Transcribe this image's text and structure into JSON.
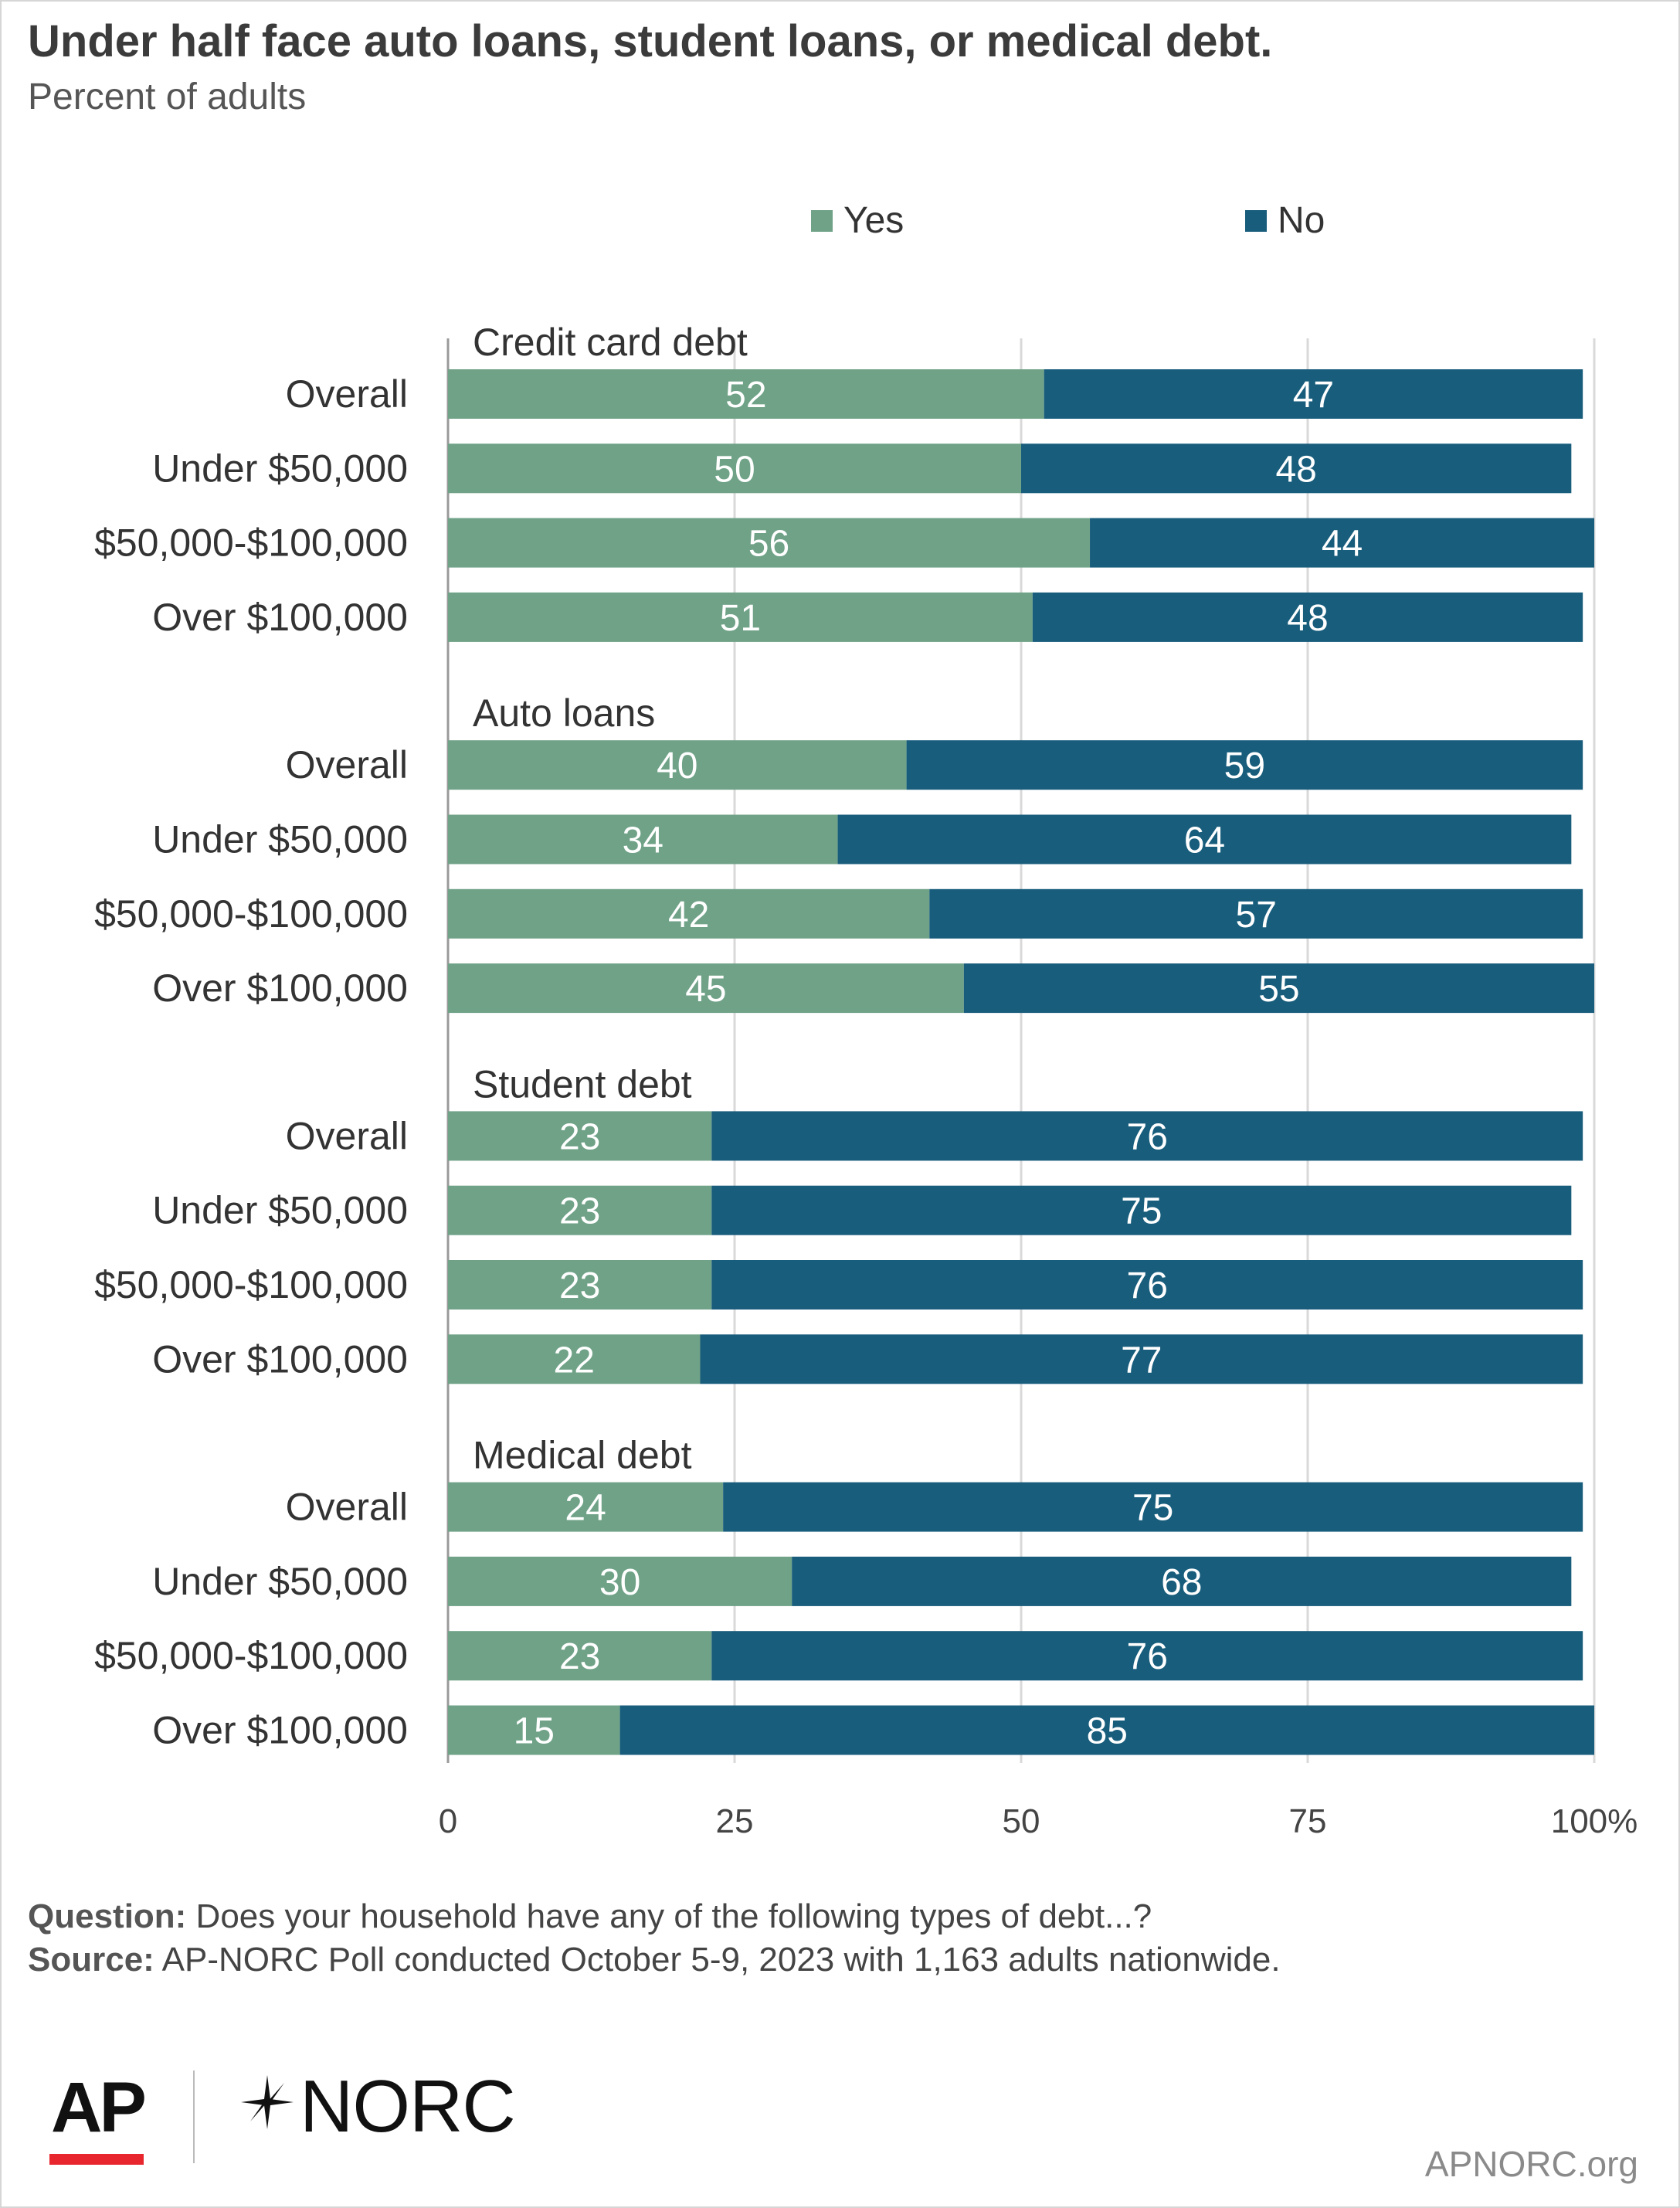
{
  "header": {
    "title": "Under half face auto loans, student loans, or medical debt.",
    "subtitle": "Percent of adults"
  },
  "colors": {
    "yes": "#6fa287",
    "no": "#185d7c",
    "grid": "#d9d9d9",
    "ap_red": "#e8262d"
  },
  "chart_data": {
    "type": "bar",
    "orientation": "horizontal",
    "stacked": true,
    "xlim": [
      0,
      100
    ],
    "x_ticks": [
      "0",
      "25",
      "50",
      "75",
      "100%"
    ],
    "grid": true,
    "legend_position": "top",
    "series": [
      {
        "name": "Yes"
      },
      {
        "name": "No"
      }
    ],
    "groups": [
      {
        "title": "Credit card debt",
        "rows": [
          {
            "label": "Overall",
            "yes": 52,
            "no": 47
          },
          {
            "label": "Under $50,000",
            "yes": 50,
            "no": 48
          },
          {
            "label": "$50,000-$100,000",
            "yes": 56,
            "no": 44
          },
          {
            "label": "Over $100,000",
            "yes": 51,
            "no": 48
          }
        ]
      },
      {
        "title": "Auto loans",
        "rows": [
          {
            "label": "Overall",
            "yes": 40,
            "no": 59
          },
          {
            "label": "Under $50,000",
            "yes": 34,
            "no": 64
          },
          {
            "label": "$50,000-$100,000",
            "yes": 42,
            "no": 57
          },
          {
            "label": "Over $100,000",
            "yes": 45,
            "no": 55
          }
        ]
      },
      {
        "title": "Student debt",
        "rows": [
          {
            "label": "Overall",
            "yes": 23,
            "no": 76
          },
          {
            "label": "Under $50,000",
            "yes": 23,
            "no": 75
          },
          {
            "label": "$50,000-$100,000",
            "yes": 23,
            "no": 76
          },
          {
            "label": "Over $100,000",
            "yes": 22,
            "no": 77
          }
        ]
      },
      {
        "title": "Medical debt",
        "rows": [
          {
            "label": "Overall",
            "yes": 24,
            "no": 75
          },
          {
            "label": "Under $50,000",
            "yes": 30,
            "no": 68
          },
          {
            "label": "$50,000-$100,000",
            "yes": 23,
            "no": 76
          },
          {
            "label": "Over $100,000",
            "yes": 15,
            "no": 85
          }
        ]
      }
    ]
  },
  "footer": {
    "question_label": "Question:",
    "question_text": " Does your household have any of the following types of debt...?",
    "source_label": "Source:",
    "source_text": " AP-NORC Poll conducted October 5-9, 2023 with 1,163 adults nationwide.",
    "logo_ap": "AP",
    "logo_norc": "NORC",
    "site": "APNORC.org"
  }
}
